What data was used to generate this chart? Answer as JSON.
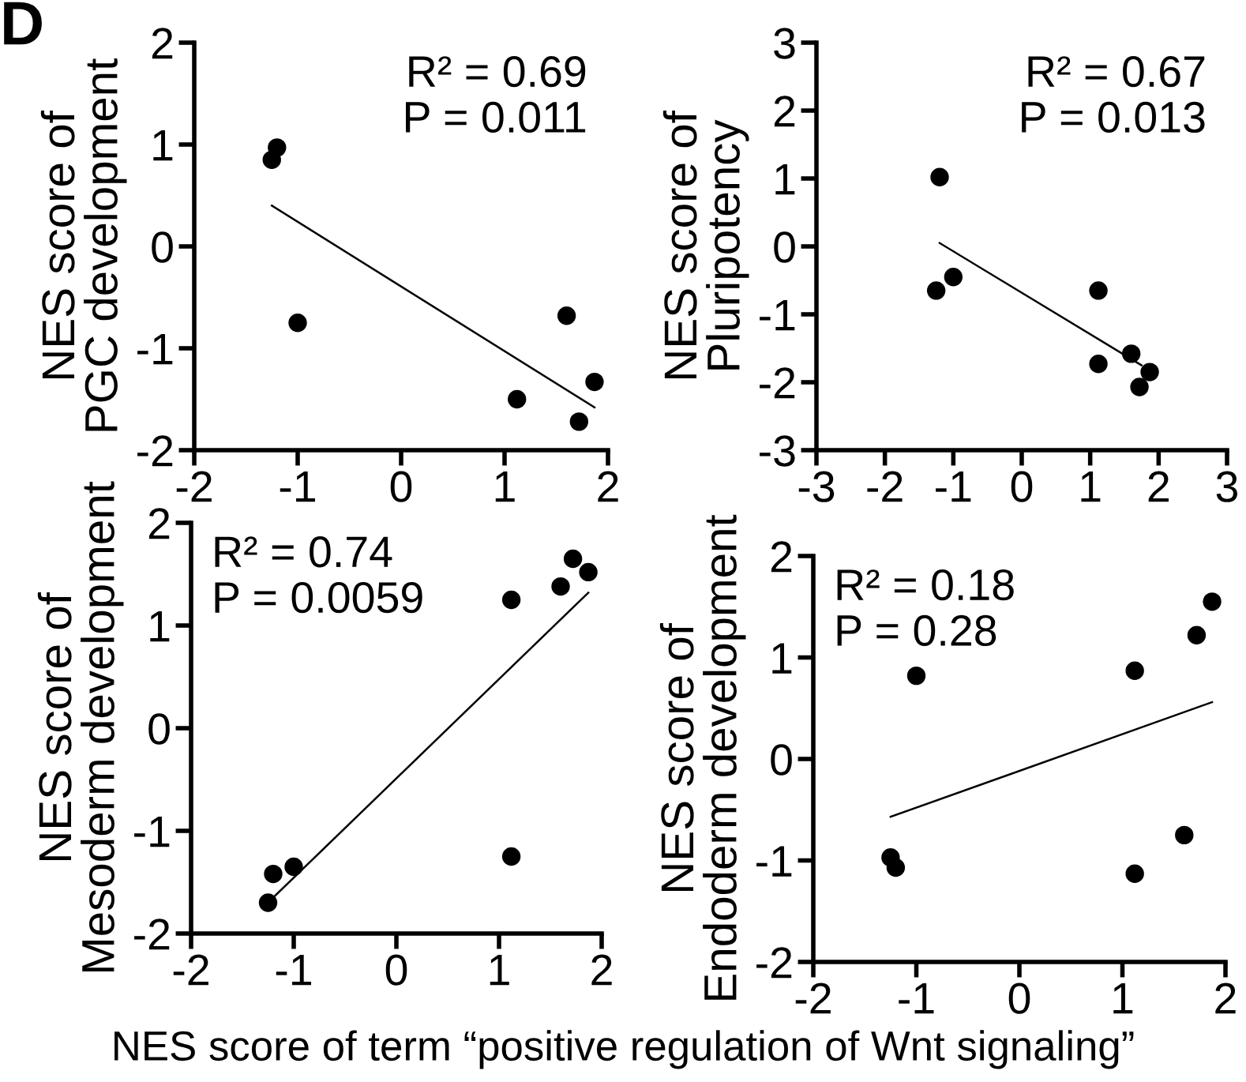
{
  "chart_data": [
    {
      "type": "scatter",
      "title": "D",
      "ylabel": "NES score of\nPGC development",
      "xlim": [
        -2,
        2
      ],
      "xticks": [
        -2,
        -1,
        0,
        1,
        2
      ],
      "ylim": [
        -2,
        2
      ],
      "yticks": [
        -2,
        -1,
        0,
        1,
        2
      ],
      "grid": false,
      "annotations": [
        "R² = 0.69\nP = 0.011"
      ],
      "series": [
        {
          "marker": "circle",
          "color": "#000000",
          "x": [
            -1.25,
            -1.2,
            -1.0,
            1.12,
            1.6,
            1.72,
            1.87
          ],
          "values": [
            0.85,
            0.97,
            -0.75,
            -1.5,
            -0.68,
            -1.72,
            -1.33
          ]
        },
        {
          "type": "line",
          "marker": "none",
          "color": "#000000",
          "x": [
            -1.25,
            1.87
          ],
          "values": [
            0.4,
            -1.58
          ]
        }
      ]
    },
    {
      "type": "scatter",
      "ylabel": "NES score of\nPluripotency",
      "xlim": [
        -3,
        3
      ],
      "xticks": [
        -3,
        -2,
        -1,
        0,
        1,
        2,
        3
      ],
      "ylim": [
        -3,
        3
      ],
      "yticks": [
        -3,
        -2,
        -1,
        0,
        1,
        2,
        3
      ],
      "grid": false,
      "annotations": [
        "R² = 0.67\nP = 0.013"
      ],
      "series": [
        {
          "marker": "circle",
          "color": "#000000",
          "x": [
            -1.25,
            -1.2,
            -1.0,
            1.12,
            1.12,
            1.6,
            1.72,
            1.87
          ],
          "values": [
            -0.65,
            1.02,
            -0.45,
            -0.65,
            -1.73,
            -1.58,
            -2.07,
            -1.85
          ]
        },
        {
          "type": "line",
          "marker": "none",
          "color": "#000000",
          "x": [
            -1.2,
            1.75
          ],
          "values": [
            0.05,
            -1.75
          ]
        }
      ]
    },
    {
      "type": "scatter",
      "ylabel": "NES score of\nMesoderm development",
      "xlim": [
        -2,
        2
      ],
      "xticks": [
        -2,
        -1,
        0,
        1,
        2
      ],
      "ylim": [
        -2,
        2
      ],
      "yticks": [
        -2,
        -1,
        0,
        1,
        2
      ],
      "grid": false,
      "annotations": [
        "R² = 0.74\nP = 0.0059"
      ],
      "series": [
        {
          "marker": "circle",
          "color": "#000000",
          "x": [
            -1.25,
            -1.2,
            -1.0,
            1.12,
            1.12,
            1.6,
            1.72,
            1.87
          ],
          "values": [
            -1.7,
            -1.42,
            -1.35,
            1.25,
            -1.25,
            1.38,
            1.65,
            1.52
          ]
        },
        {
          "type": "line",
          "marker": "none",
          "color": "#000000",
          "x": [
            -1.2,
            1.87
          ],
          "values": [
            -1.65,
            1.32
          ]
        }
      ]
    },
    {
      "type": "scatter",
      "ylabel": "NES score of\nEndoderm development",
      "xlabel": "NES score of term “positive regulation of Wnt signaling”",
      "xlim": [
        -2,
        2
      ],
      "xticks": [
        -2,
        -1,
        0,
        1,
        2
      ],
      "ylim": [
        -2,
        2
      ],
      "yticks": [
        -2,
        -1,
        0,
        1,
        2
      ],
      "grid": false,
      "annotations": [
        "R² = 0.18\nP = 0.28"
      ],
      "series": [
        {
          "marker": "circle",
          "color": "#000000",
          "x": [
            -1.25,
            -1.2,
            -1.0,
            1.12,
            1.12,
            1.6,
            1.72,
            1.87
          ],
          "values": [
            -0.97,
            -1.07,
            0.82,
            0.87,
            -1.13,
            -0.75,
            1.22,
            1.55
          ]
        },
        {
          "type": "line",
          "marker": "none",
          "color": "#000000",
          "x": [
            -1.25,
            1.87
          ],
          "values": [
            -0.57,
            0.56
          ]
        }
      ]
    }
  ]
}
